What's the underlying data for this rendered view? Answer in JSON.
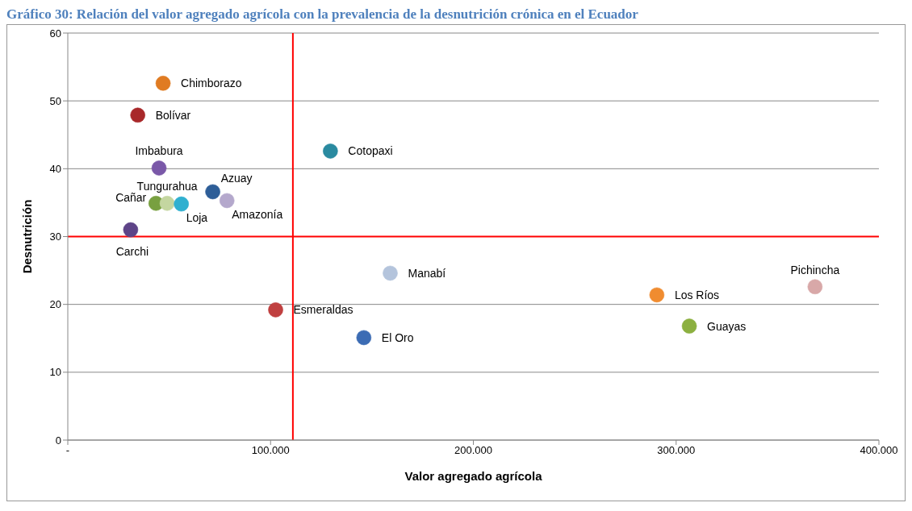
{
  "chart_data": {
    "type": "scatter",
    "title": "Gráfico 30: Relación del valor agregado agrícola con la prevalencia de la desnutrición crónica en el Ecuador",
    "xlabel": "Valor agregado agrícola",
    "ylabel": "Desnutrición",
    "xlim": [
      0,
      400000
    ],
    "xticks": [
      {
        "value": 0,
        "label": "-"
      },
      {
        "value": 100000,
        "label": "100.000"
      },
      {
        "value": 200000,
        "label": "200.000"
      },
      {
        "value": 300000,
        "label": "300.000"
      },
      {
        "value": 400000,
        "label": "400.000"
      }
    ],
    "ylim": [
      0,
      60
    ],
    "yticks": [
      0,
      10,
      20,
      30,
      40,
      50,
      60
    ],
    "grid": "y",
    "legend": false,
    "marker": "circle",
    "ref_lines": [
      {
        "axis": "x",
        "value": 111000,
        "color": "#ff0000"
      },
      {
        "axis": "y",
        "value": 30,
        "color": "#ff0000"
      }
    ],
    "series": [
      {
        "name": "Chimborazo",
        "color": "#e07b22",
        "x": [
          47000
        ],
        "values": [
          52.6
        ]
      },
      {
        "name": "Bolívar",
        "color": "#a8282a",
        "x": [
          34500
        ],
        "values": [
          47.9
        ]
      },
      {
        "name": "Imbabura",
        "color": "#7a58a8",
        "x": [
          45000
        ],
        "values": [
          40.1
        ]
      },
      {
        "name": "Cañar",
        "color": "#78a040",
        "x": [
          43500
        ],
        "values": [
          34.9
        ]
      },
      {
        "name": "Tungurahua",
        "color": "#c4d6a0",
        "x": [
          49000
        ],
        "values": [
          34.9
        ]
      },
      {
        "name": "Loja",
        "color": "#30b0d0",
        "x": [
          56000
        ],
        "values": [
          34.8
        ]
      },
      {
        "name": "Azuay",
        "color": "#2e5e98",
        "x": [
          71500
        ],
        "values": [
          36.6
        ]
      },
      {
        "name": "Amazonía",
        "color": "#b4a8cc",
        "x": [
          78500
        ],
        "values": [
          35.3
        ]
      },
      {
        "name": "Carchi",
        "color": "#5e4488",
        "x": [
          31000
        ],
        "values": [
          31.0
        ]
      },
      {
        "name": "Cotopaxi",
        "color": "#2a8aa0",
        "x": [
          129500
        ],
        "values": [
          42.6
        ]
      },
      {
        "name": "Esmeraldas",
        "color": "#c04040",
        "x": [
          102500
        ],
        "values": [
          19.2
        ]
      },
      {
        "name": "El Oro",
        "color": "#3c6cb4",
        "x": [
          146000
        ],
        "values": [
          15.1
        ]
      },
      {
        "name": "Manabí",
        "color": "#b4c4dc",
        "x": [
          159000
        ],
        "values": [
          24.6
        ]
      },
      {
        "name": "Los Ríos",
        "color": "#f08c30",
        "x": [
          290500
        ],
        "values": [
          21.4
        ]
      },
      {
        "name": "Guayas",
        "color": "#8cb040",
        "x": [
          306500
        ],
        "values": [
          16.8
        ]
      },
      {
        "name": "Pichincha",
        "color": "#d8a8a8",
        "x": [
          368500
        ],
        "values": [
          22.6
        ]
      }
    ]
  }
}
